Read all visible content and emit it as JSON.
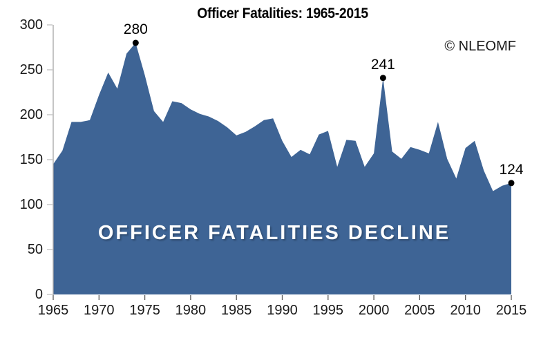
{
  "title": "Officer Fatalities: 1965-2015",
  "copyright": "© NLEOMF",
  "overlay_text": "OFFICER FATALITIES DECLINE",
  "colors": {
    "area_fill": "#3E6495",
    "axis_line": "#A6A6A6",
    "y_tick": "#BFBFBF",
    "x_tick": "#595959",
    "text": "#1a1a1a",
    "annotation_dot": "#000000",
    "overlay_text": "#FFFFFF"
  },
  "chart_data": {
    "type": "area",
    "title": "Officer Fatalities: 1965-2015",
    "xlabel": "",
    "ylabel": "",
    "ylim": [
      0,
      300
    ],
    "grid": false,
    "legend": "none",
    "y_ticks": [
      0,
      50,
      100,
      150,
      200,
      250,
      300
    ],
    "x_ticks": [
      1965,
      1970,
      1975,
      1980,
      1985,
      1990,
      1995,
      2000,
      2005,
      2010,
      2015
    ],
    "x": [
      1965,
      1966,
      1967,
      1968,
      1969,
      1970,
      1971,
      1972,
      1973,
      1974,
      1975,
      1976,
      1977,
      1978,
      1979,
      1980,
      1981,
      1982,
      1983,
      1984,
      1985,
      1986,
      1987,
      1988,
      1989,
      1990,
      1991,
      1992,
      1993,
      1994,
      1995,
      1996,
      1997,
      1998,
      1999,
      2000,
      2001,
      2002,
      2003,
      2004,
      2005,
      2006,
      2007,
      2008,
      2009,
      2010,
      2011,
      2012,
      2013,
      2014,
      2015
    ],
    "values": [
      145,
      160,
      192,
      192,
      194,
      222,
      247,
      229,
      268,
      280,
      244,
      204,
      192,
      215,
      213,
      206,
      201,
      198,
      193,
      186,
      177,
      181,
      187,
      194,
      196,
      171,
      153,
      161,
      156,
      178,
      182,
      142,
      172,
      171,
      142,
      157,
      241,
      159,
      151,
      164,
      161,
      157,
      192,
      151,
      129,
      163,
      171,
      138,
      115,
      121,
      124
    ],
    "annotations": [
      {
        "x": 1974,
        "y": 280,
        "label": "280"
      },
      {
        "x": 2001,
        "y": 241,
        "label": "241"
      },
      {
        "x": 2015,
        "y": 124,
        "label": "124"
      }
    ]
  }
}
